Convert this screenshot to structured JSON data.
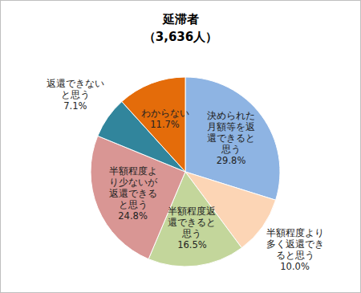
{
  "chart_data": {
    "type": "pie",
    "title": "延滞者",
    "subtitle": "（3,636人）",
    "categories": [
      "決められた月額等を返還できると思う",
      "半額程度より多く返還できると思う",
      "半額程度返還できると思う",
      "半額程度より少ないが返還できると思う",
      "返還できないと思う",
      "わからない"
    ],
    "values": [
      29.8,
      10.0,
      16.5,
      24.8,
      7.1,
      11.7
    ],
    "value_labels": [
      "29.8%",
      "10.0%",
      "16.5%",
      "24.8%",
      "7.1%",
      "11.7%"
    ],
    "colors": [
      "#8eb4e3",
      "#fcd5b5",
      "#c3d69b",
      "#d99694",
      "#31859c",
      "#e46c0a"
    ],
    "data_labels": true
  }
}
